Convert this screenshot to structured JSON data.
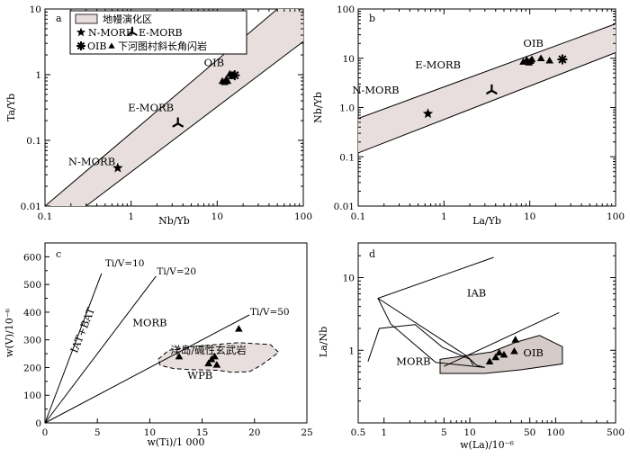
{
  "chart_data": [
    {
      "panel": "a",
      "type": "scatter",
      "xscale": "log",
      "yscale": "log",
      "xlim": [
        0.1,
        100
      ],
      "ylim": [
        0.01,
        10
      ],
      "xticks": [
        "0.1",
        "1",
        "10",
        "100"
      ],
      "yticks": [
        "0.01",
        "0.1",
        "1",
        "10"
      ],
      "xlabel": "Nb/Yb",
      "ylabel": "Ta/Yb",
      "array": {
        "lower": [
          [
            0.3,
            0.01
          ],
          [
            100,
            3.2
          ]
        ],
        "upper": [
          [
            0.1,
            0.01
          ],
          [
            50,
            10
          ]
        ]
      },
      "field_labels": [
        {
          "text": "N-MORB",
          "x": 0.35,
          "y": 0.042
        },
        {
          "text": "E-MORB",
          "x": 1.7,
          "y": 0.28
        },
        {
          "text": "OIB",
          "x": 9.2,
          "y": 1.35
        }
      ],
      "legend": {
        "title": "地幔演化区",
        "row1": "N-MORB",
        "row1b": "E-MORB",
        "row2a": "OIB",
        "row2b": "下河图村斜长角闪岩"
      },
      "points": [
        {
          "marker": "star",
          "x": 0.7,
          "y": 0.038
        },
        {
          "marker": "tri3",
          "x": 3.5,
          "y": 0.18
        },
        {
          "marker": "asterisk",
          "x": 16,
          "y": 0.98
        },
        {
          "marker": "triangle",
          "x": 11.5,
          "y": 0.8
        },
        {
          "marker": "triangle",
          "x": 12.2,
          "y": 0.77
        },
        {
          "marker": "triangle",
          "x": 12.8,
          "y": 0.86
        },
        {
          "marker": "triangle",
          "x": 13.2,
          "y": 0.8
        },
        {
          "marker": "triangle",
          "x": 14,
          "y": 1.03
        },
        {
          "marker": "triangle",
          "x": 14.8,
          "y": 0.95
        },
        {
          "marker": "triangle",
          "x": 15.4,
          "y": 1.0
        }
      ]
    },
    {
      "panel": "b",
      "type": "scatter",
      "xscale": "log",
      "yscale": "log",
      "xlim": [
        0.1,
        100
      ],
      "ylim": [
        0.01,
        100
      ],
      "xticks": [
        "0.1",
        "1",
        "10",
        "100"
      ],
      "yticks": [
        "0.01",
        "0.1",
        "1.0",
        "10",
        "100"
      ],
      "xlabel": "La/Yb",
      "ylabel": "Nb/Yb",
      "array": {
        "upper": [
          [
            0.1,
            0.6
          ],
          [
            100,
            50
          ]
        ],
        "lower": [
          [
            0.1,
            0.12
          ],
          [
            100,
            13
          ]
        ]
      },
      "field_labels": [
        {
          "text": "N-MORB",
          "x": 0.16,
          "y": 1.9
        },
        {
          "text": "E-MORB",
          "x": 0.85,
          "y": 6.2
        },
        {
          "text": "OIB",
          "x": 11,
          "y": 17
        }
      ],
      "points": [
        {
          "marker": "star",
          "x": 0.65,
          "y": 0.75
        },
        {
          "marker": "tri3",
          "x": 3.6,
          "y": 2.2
        },
        {
          "marker": "asterisk",
          "x": 24,
          "y": 9.5
        },
        {
          "marker": "triangle",
          "x": 8.4,
          "y": 8.5
        },
        {
          "marker": "triangle",
          "x": 9.2,
          "y": 9.3
        },
        {
          "marker": "triangle",
          "x": 9.8,
          "y": 8.2
        },
        {
          "marker": "triangle",
          "x": 10.2,
          "y": 8.8
        },
        {
          "marker": "triangle",
          "x": 10.6,
          "y": 9.5
        },
        {
          "marker": "triangle",
          "x": 13.5,
          "y": 10
        },
        {
          "marker": "triangle",
          "x": 17,
          "y": 9
        }
      ]
    },
    {
      "panel": "c",
      "type": "scatter",
      "xscale": "linear",
      "yscale": "linear",
      "xlim": [
        0,
        25
      ],
      "ylim": [
        0,
        650
      ],
      "xticks": [
        "0",
        "5",
        "10",
        "15",
        "20",
        "25"
      ],
      "yticks": [
        "0",
        "100",
        "200",
        "300",
        "400",
        "500",
        "600"
      ],
      "xlabel": "w(Ti)/1 000",
      "ylabel": "w(V)/10⁻⁶",
      "lines": [
        {
          "label": "Ti/V=10",
          "end": [
            5.4,
            540
          ]
        },
        {
          "label": "Ti/V=20",
          "end": [
            10.6,
            530
          ]
        },
        {
          "label": "Ti/V=50",
          "end": [
            19.5,
            390
          ]
        }
      ],
      "field_labels": [
        {
          "text": "IAT+BAT"
        },
        {
          "text": "MORB",
          "x": 10,
          "y": 350
        },
        {
          "text": "洋岛/碱性玄武岩",
          "x": 15.6,
          "y": 250
        },
        {
          "text": "WPB",
          "x": 14.8,
          "y": 160
        }
      ],
      "points": [
        {
          "marker": "triangle",
          "x": 12.8,
          "y": 240
        },
        {
          "marker": "triangle",
          "x": 15.6,
          "y": 215
        },
        {
          "marker": "triangle",
          "x": 15.9,
          "y": 230
        },
        {
          "marker": "triangle",
          "x": 16.2,
          "y": 240
        },
        {
          "marker": "triangle",
          "x": 16.4,
          "y": 210
        },
        {
          "marker": "triangle",
          "x": 18.5,
          "y": 340
        }
      ]
    },
    {
      "panel": "d",
      "type": "scatter",
      "xscale": "log",
      "yscale": "log",
      "xlim": [
        0.5,
        500
      ],
      "ylim": [
        0.1,
        30
      ],
      "xticks": [
        "0.5",
        "1",
        "5",
        "10",
        "50",
        "100",
        "500"
      ],
      "yticks": [
        "1",
        "10"
      ],
      "xlabel": "w(La)/10⁻⁶",
      "ylabel": "La/Nb",
      "field_labels": [
        {
          "text": "IAB",
          "x": 12,
          "y": 5.5
        },
        {
          "text": "MORB",
          "x": 2.2,
          "y": 0.63
        },
        {
          "text": "OIB",
          "x": 55,
          "y": 0.82
        }
      ],
      "points": [
        {
          "marker": "triangle",
          "x": 17,
          "y": 0.7
        },
        {
          "marker": "triangle",
          "x": 20,
          "y": 0.8
        },
        {
          "marker": "triangle",
          "x": 22,
          "y": 0.93
        },
        {
          "marker": "triangle",
          "x": 25,
          "y": 0.87
        },
        {
          "marker": "triangle",
          "x": 33,
          "y": 0.97
        },
        {
          "marker": "triangle",
          "x": 34,
          "y": 1.4
        }
      ]
    }
  ],
  "panel_letters": [
    "a",
    "b",
    "c",
    "d"
  ]
}
